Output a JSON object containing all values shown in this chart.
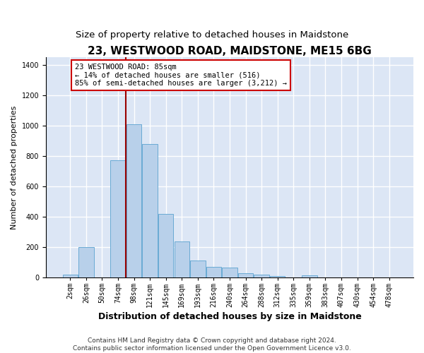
{
  "title": "23, WESTWOOD ROAD, MAIDSTONE, ME15 6BG",
  "subtitle": "Size of property relative to detached houses in Maidstone",
  "xlabel": "Distribution of detached houses by size in Maidstone",
  "ylabel": "Number of detached properties",
  "footer_line1": "Contains HM Land Registry data © Crown copyright and database right 2024.",
  "footer_line2": "Contains public sector information licensed under the Open Government Licence v3.0.",
  "bar_categories": [
    "2sqm",
    "26sqm",
    "50sqm",
    "74sqm",
    "98sqm",
    "121sqm",
    "145sqm",
    "169sqm",
    "193sqm",
    "216sqm",
    "240sqm",
    "264sqm",
    "288sqm",
    "312sqm",
    "335sqm",
    "359sqm",
    "383sqm",
    "407sqm",
    "430sqm",
    "454sqm",
    "478sqm"
  ],
  "bar_values": [
    20,
    200,
    0,
    770,
    1010,
    880,
    420,
    235,
    110,
    70,
    65,
    25,
    20,
    10,
    0,
    15,
    0,
    0,
    0,
    0,
    0
  ],
  "bar_color": "#b8d0ea",
  "bar_edge_color": "#6aaad4",
  "vline_color": "#990000",
  "annotation_text": "23 WESTWOOD ROAD: 85sqm\n← 14% of detached houses are smaller (516)\n85% of semi-detached houses are larger (3,212) →",
  "annotation_box_color": "#ffffff",
  "annotation_box_edge_color": "#cc0000",
  "ylim": [
    0,
    1450
  ],
  "yticks": [
    0,
    200,
    400,
    600,
    800,
    1000,
    1200,
    1400
  ],
  "fig_bg_color": "#ffffff",
  "plot_bg_color": "#dce6f5",
  "grid_color": "#ffffff",
  "title_fontsize": 11,
  "subtitle_fontsize": 9.5,
  "xlabel_fontsize": 9,
  "ylabel_fontsize": 8,
  "tick_fontsize": 7,
  "annotation_fontsize": 7.5,
  "footer_fontsize": 6.5
}
